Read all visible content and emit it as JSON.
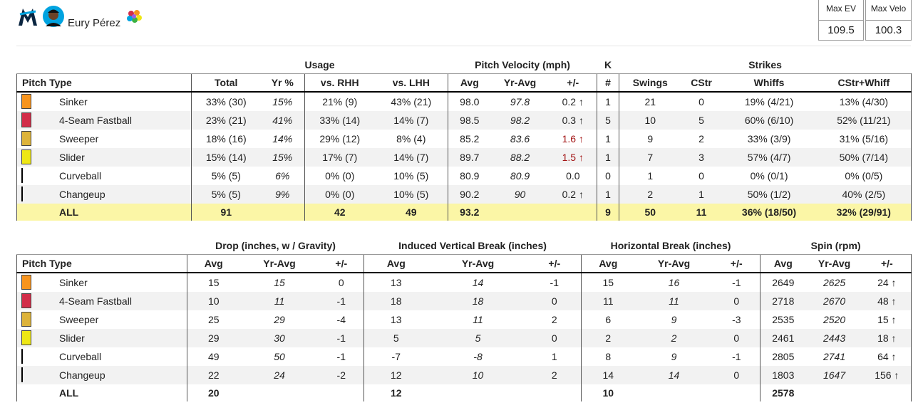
{
  "header": {
    "player_name": "Eury Pérez",
    "stats": [
      {
        "label": "Max EV",
        "value": "109.5"
      },
      {
        "label": "Max Velo",
        "value": "100.3"
      }
    ]
  },
  "table1": {
    "groups": [
      "Usage",
      "Pitch Velocity (mph)",
      "K",
      "Strikes"
    ],
    "columns": [
      "Pitch Type",
      "Total",
      "Yr %",
      "vs. RHH",
      "vs. LHH",
      "Avg",
      "Yr-Avg",
      "+/-",
      "#",
      "Swings",
      "CStr",
      "Whiffs",
      "CStr+Whiff"
    ],
    "rows": [
      {
        "name": "Sinker",
        "color": "#f7941d",
        "cells": [
          "33% (30)",
          "15%",
          "21% (9)",
          "43% (21)",
          "98.0",
          "97.8",
          "0.2 ↑",
          1,
          21,
          0,
          "19% (4/21)",
          "13% (4/30)"
        ]
      },
      {
        "name": "4-Seam Fastball",
        "color": "#d22d49",
        "cells": [
          "23% (21)",
          "41%",
          "33% (14)",
          "14% (7)",
          "98.5",
          "98.2",
          "0.3 ↑",
          5,
          10,
          5,
          "60% (6/10)",
          "52% (11/21)"
        ]
      },
      {
        "name": "Sweeper",
        "color": "#ddb33a",
        "delta_color": "#a31515",
        "cells": [
          "18% (16)",
          "14%",
          "29% (12)",
          "8% (4)",
          "85.2",
          "83.6",
          "1.6 ↑",
          1,
          9,
          2,
          "33% (3/9)",
          "31% (5/16)"
        ]
      },
      {
        "name": "Slider",
        "color": "#eee716",
        "delta_color": "#a31515",
        "cells": [
          "15% (14)",
          "15%",
          "17% (7)",
          "14% (7)",
          "89.7",
          "88.2",
          "1.5 ↑",
          1,
          7,
          3,
          "57% (4/7)",
          "50% (7/14)"
        ]
      },
      {
        "name": "Curveball",
        "cells": [
          "5% (5)",
          "6%",
          "0% (0)",
          "10% (5)",
          "80.9",
          "80.9",
          "0.0",
          0,
          1,
          0,
          "0% (0/1)",
          "0% (0/5)"
        ]
      },
      {
        "name": "Changeup",
        "cells": [
          "5% (5)",
          "9%",
          "0% (0)",
          "10% (5)",
          "90.2",
          "90",
          "0.2 ↑",
          1,
          2,
          1,
          "50% (1/2)",
          "40% (2/5)"
        ]
      }
    ],
    "total": {
      "name": "ALL",
      "cells": [
        91,
        null,
        42,
        49,
        "93.2",
        null,
        null,
        9,
        50,
        11,
        "36% (18/50)",
        "32% (29/91)"
      ]
    }
  },
  "table2": {
    "groups": [
      "Drop (inches, w / Gravity)",
      "Induced Vertical Break (inches)",
      "Horizontal Break (inches)",
      "Spin (rpm)"
    ],
    "columns": [
      "Pitch Type",
      "Avg",
      "Yr-Avg",
      "+/-",
      "Avg",
      "Yr-Avg",
      "+/-",
      "Avg",
      "Yr-Avg",
      "+/-",
      "Avg",
      "Yr-Avg",
      "+/-"
    ],
    "rows": [
      {
        "name": "Sinker",
        "color": "#f7941d",
        "cells": [
          15,
          15,
          0,
          13,
          14,
          -1,
          15,
          16,
          -1,
          2649,
          2625,
          "24 ↑"
        ]
      },
      {
        "name": "4-Seam Fastball",
        "color": "#d22d49",
        "cells": [
          10,
          11,
          -1,
          18,
          18,
          0,
          11,
          11,
          0,
          2718,
          2670,
          "48 ↑"
        ]
      },
      {
        "name": "Sweeper",
        "color": "#ddb33a",
        "cells": [
          25,
          29,
          -4,
          13,
          11,
          2,
          6,
          9,
          -3,
          2535,
          2520,
          "15 ↑"
        ]
      },
      {
        "name": "Slider",
        "color": "#eee716",
        "cells": [
          29,
          30,
          -1,
          5,
          5,
          0,
          2,
          2,
          0,
          2461,
          2443,
          "18 ↑"
        ]
      },
      {
        "name": "Curveball",
        "cells": [
          49,
          50,
          -1,
          -7,
          -8,
          1,
          8,
          9,
          -1,
          2805,
          2741,
          "64 ↑"
        ]
      },
      {
        "name": "Changeup",
        "cells": [
          22,
          24,
          -2,
          12,
          10,
          2,
          14,
          14,
          0,
          1803,
          1647,
          "156 ↑"
        ]
      }
    ],
    "total": {
      "name": "ALL",
      "cells": [
        20,
        null,
        null,
        12,
        null,
        null,
        10,
        null,
        null,
        2578,
        null,
        null
      ]
    }
  }
}
